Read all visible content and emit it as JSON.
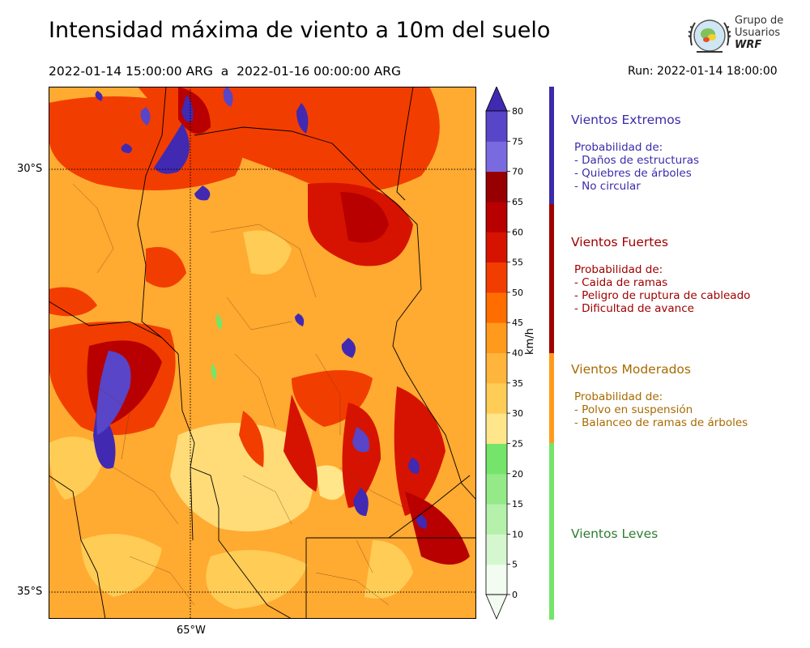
{
  "title": "Intensidad máxima de viento a 10m del suelo",
  "period": "2022-01-14 15:00:00 ARG  a  2022-01-16 00:00:00 ARG",
  "run": "Run: 2022-01-14 18:00:00",
  "logo": {
    "line1": "Grupo de",
    "line2": "Usuarios",
    "line3": "WRF"
  },
  "map": {
    "lat_labels": [
      "30°S",
      "35°S"
    ],
    "lon_labels": [
      "65°W"
    ]
  },
  "colorbar": {
    "unit": "km/h",
    "ticks": [
      "0",
      "5",
      "10",
      "15",
      "20",
      "25",
      "30",
      "35",
      "40",
      "45",
      "50",
      "55",
      "60",
      "65",
      "70",
      "75",
      "80"
    ],
    "colors": [
      "#f2fcf0",
      "#d5f7cf",
      "#b5f1aa",
      "#94ea87",
      "#74e46a",
      "#ffe68a",
      "#ffcc55",
      "#ffb43c",
      "#ff9a1c",
      "#ff6d00",
      "#f23d00",
      "#d61300",
      "#b80000",
      "#960000",
      "#7a6ae0",
      "#5845c8",
      "#4129b2"
    ]
  },
  "legend": [
    {
      "title": "Vientos Extremos",
      "color": "#3b2bab",
      "lines": [
        "Probabilidad de:",
        "- Daños de estructuras",
        "- Quiebres de árboles",
        "- No circular"
      ]
    },
    {
      "title": "Vientos Fuertes",
      "color": "#a00000",
      "lines": [
        "Probabilidad de:",
        "- Caida de ramas",
        "- Peligro de ruptura de cableado",
        "- Dificultad de avance"
      ]
    },
    {
      "title": "Vientos Moderados",
      "color": "#a86a00",
      "lines": [
        "Probabilidad de:",
        "- Polvo en suspensión",
        "- Balanceo de ramas de árboles"
      ]
    },
    {
      "title": "Vientos Leves",
      "color": "#2e7d32",
      "lines": []
    }
  ]
}
